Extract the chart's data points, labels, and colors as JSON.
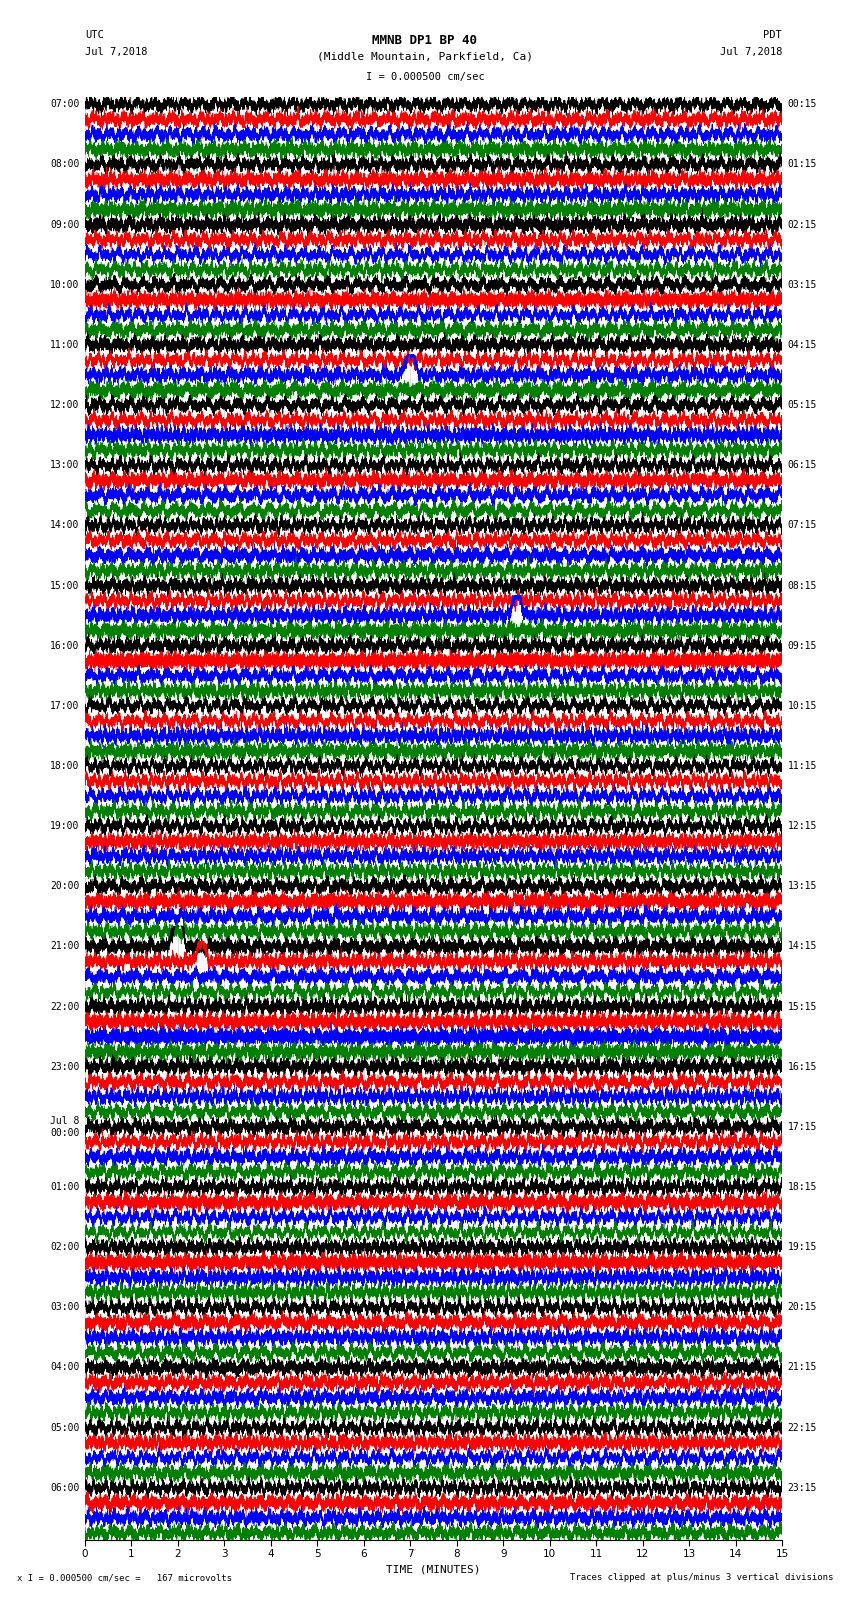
{
  "title_line1": "MMNB DP1 BP 40",
  "title_line2": "(Middle Mountain, Parkfield, Ca)",
  "label_left_top": "UTC",
  "label_left_date": "Jul 7,2018",
  "label_right_top": "PDT",
  "label_right_date": "Jul 7,2018",
  "scale_label": "I = 0.000500 cm/sec",
  "bottom_left": "x I = 0.000500 cm/sec =   167 microvolts",
  "bottom_right": "Traces clipped at plus/minus 3 vertical divisions",
  "xlabel": "TIME (MINUTES)",
  "colors": [
    "black",
    "red",
    "blue",
    "green"
  ],
  "trace_duration_minutes": 15,
  "n_rows": 96,
  "left_times_utc": [
    "07:00",
    "",
    "",
    "",
    "08:00",
    "",
    "",
    "",
    "09:00",
    "",
    "",
    "",
    "10:00",
    "",
    "",
    "",
    "11:00",
    "",
    "",
    "",
    "12:00",
    "",
    "",
    "",
    "13:00",
    "",
    "",
    "",
    "14:00",
    "",
    "",
    "",
    "15:00",
    "",
    "",
    "",
    "16:00",
    "",
    "",
    "",
    "17:00",
    "",
    "",
    "",
    "18:00",
    "",
    "",
    "",
    "19:00",
    "",
    "",
    "",
    "20:00",
    "",
    "",
    "",
    "21:00",
    "",
    "",
    "",
    "22:00",
    "",
    "",
    "",
    "23:00",
    "",
    "",
    "",
    "Jul 8\n00:00",
    "",
    "",
    "",
    "01:00",
    "",
    "",
    "",
    "02:00",
    "",
    "",
    "",
    "03:00",
    "",
    "",
    "",
    "04:00",
    "",
    "",
    "",
    "05:00",
    "",
    "",
    "",
    "06:00",
    "",
    "",
    "",
    ""
  ],
  "right_times_pdt": [
    "00:15",
    "",
    "",
    "",
    "01:15",
    "",
    "",
    "",
    "02:15",
    "",
    "",
    "",
    "03:15",
    "",
    "",
    "",
    "04:15",
    "",
    "",
    "",
    "05:15",
    "",
    "",
    "",
    "06:15",
    "",
    "",
    "",
    "07:15",
    "",
    "",
    "",
    "08:15",
    "",
    "",
    "",
    "09:15",
    "",
    "",
    "",
    "10:15",
    "",
    "",
    "",
    "11:15",
    "",
    "",
    "",
    "12:15",
    "",
    "",
    "",
    "13:15",
    "",
    "",
    "",
    "14:15",
    "",
    "",
    "",
    "15:15",
    "",
    "",
    "",
    "16:15",
    "",
    "",
    "",
    "17:15",
    "",
    "",
    "",
    "18:15",
    "",
    "",
    "",
    "19:15",
    "",
    "",
    "",
    "20:15",
    "",
    "",
    "",
    "21:15",
    "",
    "",
    "",
    "22:15",
    "",
    "",
    "",
    "23:15",
    "",
    "",
    "",
    ""
  ],
  "figsize": [
    8.5,
    16.13
  ],
  "dpi": 100,
  "background_color": "white"
}
